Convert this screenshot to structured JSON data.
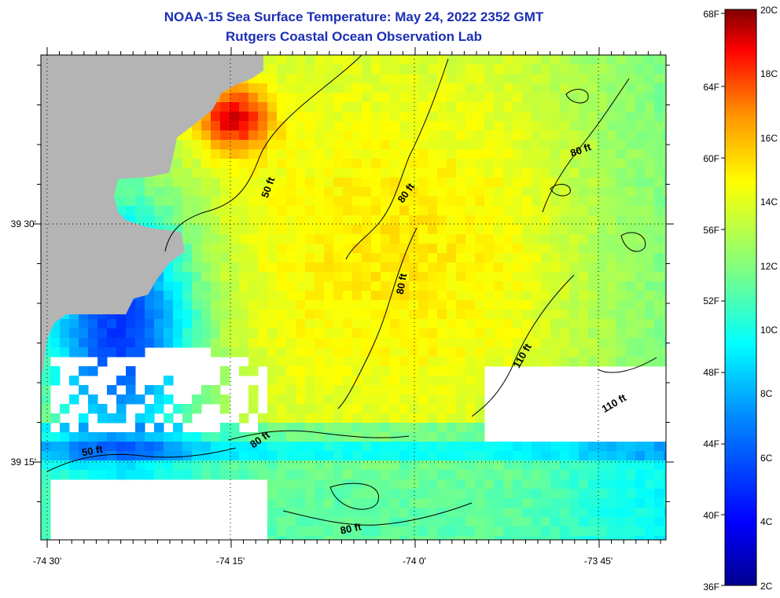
{
  "title_line1": "NOAA-15 Sea Surface Temperature:  May 24, 2022 2352 GMT",
  "title_line2": "Rutgers Coastal Ocean Observation Lab",
  "longitude_labels": [
    "-74 30'",
    "-74 15'",
    "-74 0'",
    "-73 45'"
  ],
  "latitude_labels": [
    "39 30'",
    "39 15'"
  ],
  "contour_labels": [
    {
      "text": "50 ft",
      "kind": "50"
    },
    {
      "text": "80 ft",
      "kind": "80a"
    },
    {
      "text": "80 ft",
      "kind": "80b"
    },
    {
      "text": "80 ft",
      "kind": "80c"
    },
    {
      "text": "110 ft",
      "kind": "110a"
    },
    {
      "text": "110 ft",
      "kind": "110b"
    },
    {
      "text": "50 ft",
      "kind": "50b"
    },
    {
      "text": "80 ft",
      "kind": "80d"
    },
    {
      "text": "80 ft",
      "kind": "80e"
    }
  ],
  "colorbar": {
    "fahrenheit_labels": [
      "68F",
      "64F",
      "60F",
      "56F",
      "52F",
      "48F",
      "44F",
      "40F",
      "36F"
    ],
    "celsius_labels": [
      "20C",
      "18C",
      "16C",
      "14C",
      "12C",
      "10C",
      "8C",
      "6C",
      "4C",
      "2C"
    ],
    "colors": [
      "#00008f",
      "#0000ff",
      "#0080ff",
      "#00ffff",
      "#80ff80",
      "#ffff00",
      "#ff8000",
      "#ff0000",
      "#800000"
    ]
  },
  "land_color": "#b4b4b4"
}
